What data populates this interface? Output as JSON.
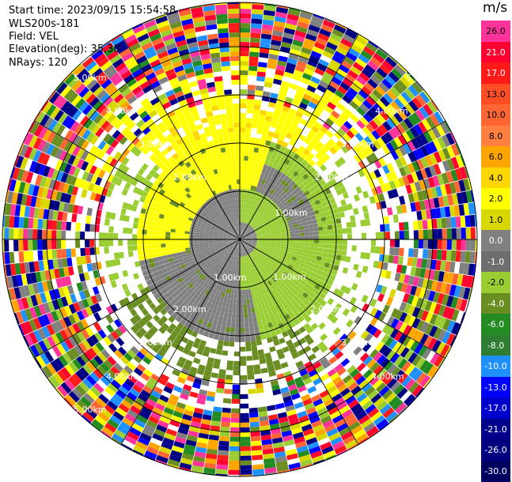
{
  "header": {
    "start_time": "Start time: 2023/09/15 15:54:58",
    "station": "WLS200s-181",
    "field": "Field: VEL",
    "elevation": "Elevation(deg): 35.30",
    "nrays": "NRays: 120"
  },
  "colorbar": {
    "unit": "m/s",
    "levels": [
      {
        "label": "26.0",
        "color": "#ff3399"
      },
      {
        "label": "21.0",
        "color": "#ff0030"
      },
      {
        "label": "17.0",
        "color": "#ff1a1a"
      },
      {
        "label": "13.0",
        "color": "#ff4d26"
      },
      {
        "label": "10.0",
        "color": "#ff6633"
      },
      {
        "label": "8.0",
        "color": "#ff8040"
      },
      {
        "label": "6.0",
        "color": "#ffa500"
      },
      {
        "label": "4.0",
        "color": "#ffd700"
      },
      {
        "label": "2.0",
        "color": "#ffff00"
      },
      {
        "label": "1.0",
        "color": "#d8d800"
      },
      {
        "label": "0.0",
        "color": "#808080"
      },
      {
        "label": "-1.0",
        "color": "#6e6e6e"
      },
      {
        "label": "-2.0",
        "color": "#9acd32"
      },
      {
        "label": "-4.0",
        "color": "#6b8e23"
      },
      {
        "label": "-6.0",
        "color": "#228b22"
      },
      {
        "label": "-8.0",
        "color": "#2e7d32"
      },
      {
        "label": "-10.0",
        "color": "#1e90ff"
      },
      {
        "label": "-13.0",
        "color": "#0000ff"
      },
      {
        "label": "-17.0",
        "color": "#0000cd"
      },
      {
        "label": "-21.0",
        "color": "#00008b"
      },
      {
        "label": "-26.0",
        "color": "#000080"
      },
      {
        "label": "-30.0",
        "color": "#000060"
      }
    ]
  },
  "range_labels": {
    "r1": "1.00km",
    "r2": "2.00km",
    "r3": "3.00km",
    "r4": "4.00km",
    "r5": "5.00km"
  }
}
